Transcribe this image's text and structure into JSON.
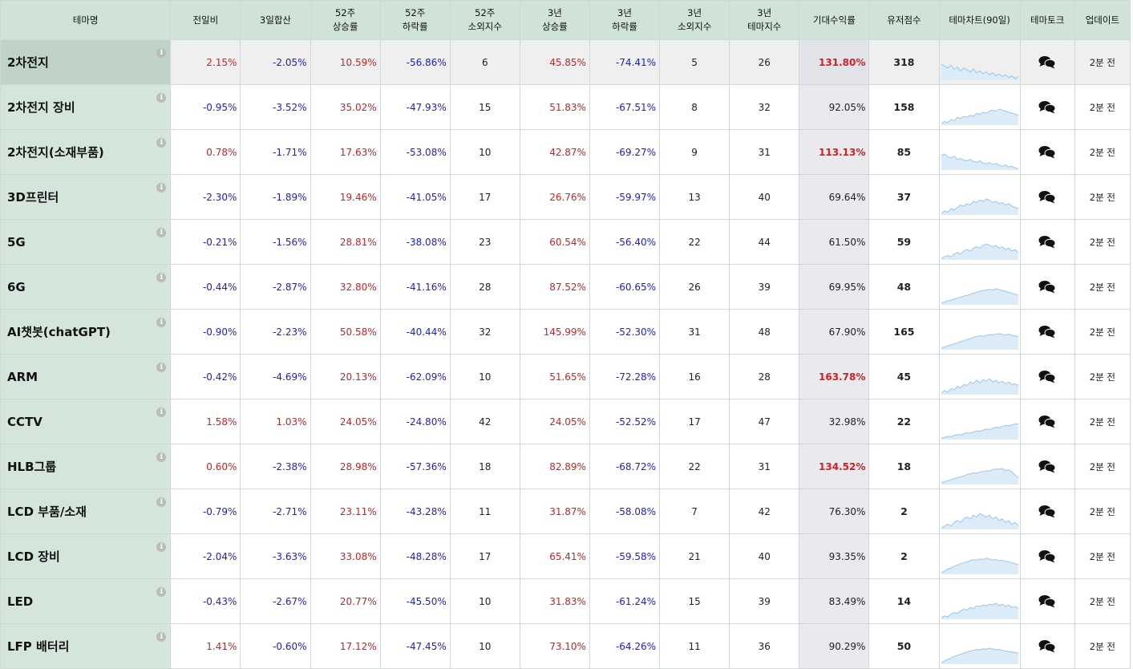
{
  "headers": {
    "name": [
      "테마명"
    ],
    "d1": [
      "전일비"
    ],
    "d3": [
      "3일합산"
    ],
    "w52up": [
      "52주",
      "상승률"
    ],
    "w52down": [
      "52주",
      "하락률"
    ],
    "w52alien": [
      "52주",
      "소외지수"
    ],
    "y3up": [
      "3년",
      "상승률"
    ],
    "y3down": [
      "3년",
      "하락률"
    ],
    "y3alien": [
      "3년",
      "소외지수"
    ],
    "y3theme": [
      "3년",
      "테마지수"
    ],
    "expected": [
      "기대수익률"
    ],
    "score": [
      "유저점수"
    ],
    "chart": [
      "테마차트(90일)"
    ],
    "talk": [
      "테마토크"
    ],
    "update": [
      "업데이트"
    ]
  },
  "colors": {
    "red": "#d12020",
    "blue": "#1c1cd6",
    "header_bg": "#cfe3d9",
    "name_bg": "#d4e6dc",
    "spark": "#9cc6ea"
  },
  "rows": [
    {
      "name": "2차전지",
      "d1": "2.15%",
      "d3": "-2.05%",
      "w52up": "10.59%",
      "w52down": "-56.86%",
      "w52alien": "6",
      "y3up": "45.85%",
      "y3down": "-74.41%",
      "y3alien": "5",
      "y3theme": "26",
      "expected": "131.80%",
      "hot": true,
      "score": "318",
      "update": "2분 전",
      "spark": [
        62,
        60,
        58,
        61,
        57,
        59,
        55,
        58,
        56,
        54,
        57,
        53,
        55,
        52,
        54,
        51,
        53,
        50,
        52,
        49,
        51,
        48,
        50,
        47,
        49
      ]
    },
    {
      "name": "2차전지 장비",
      "d1": "-0.95%",
      "d3": "-3.52%",
      "w52up": "35.02%",
      "w52down": "-47.93%",
      "w52alien": "15",
      "y3up": "51.83%",
      "y3down": "-67.51%",
      "y3alien": "8",
      "y3theme": "32",
      "expected": "92.05%",
      "hot": false,
      "score": "158",
      "update": "2분 전",
      "spark": [
        40,
        42,
        41,
        44,
        43,
        46,
        45,
        47,
        46,
        48,
        47,
        50,
        49,
        51,
        50,
        52,
        53,
        52,
        54,
        53,
        52,
        51,
        50,
        49,
        48
      ]
    },
    {
      "name": "2차전지(소재부품)",
      "d1": "0.78%",
      "d3": "-1.71%",
      "w52up": "17.63%",
      "w52down": "-53.08%",
      "w52alien": "10",
      "y3up": "42.87%",
      "y3down": "-69.27%",
      "y3alien": "9",
      "y3theme": "31",
      "expected": "113.13%",
      "hot": true,
      "score": "85",
      "update": "2분 전",
      "spark": [
        60,
        62,
        58,
        57,
        59,
        55,
        56,
        54,
        53,
        55,
        52,
        51,
        53,
        50,
        49,
        51,
        48,
        50,
        47,
        46,
        48,
        45,
        46,
        44,
        43
      ]
    },
    {
      "name": "3D프린터",
      "d1": "-2.30%",
      "d3": "-1.89%",
      "w52up": "19.46%",
      "w52down": "-41.05%",
      "w52alien": "17",
      "y3up": "26.76%",
      "y3down": "-59.97%",
      "y3alien": "13",
      "y3theme": "40",
      "expected": "69.64%",
      "hot": false,
      "score": "37",
      "update": "2분 전",
      "spark": [
        45,
        47,
        46,
        49,
        48,
        50,
        52,
        51,
        53,
        52,
        55,
        54,
        56,
        55,
        57,
        56,
        54,
        55,
        53,
        54,
        52,
        53,
        51,
        50,
        49
      ]
    },
    {
      "name": "5G",
      "d1": "-0.21%",
      "d3": "-1.56%",
      "w52up": "28.81%",
      "w52down": "-38.08%",
      "w52alien": "23",
      "y3up": "60.54%",
      "y3down": "-56.40%",
      "y3alien": "22",
      "y3theme": "44",
      "expected": "61.50%",
      "hot": false,
      "score": "59",
      "update": "2분 전",
      "spark": [
        50,
        51,
        52,
        51,
        53,
        54,
        53,
        55,
        56,
        55,
        57,
        58,
        57,
        59,
        60,
        59,
        58,
        59,
        57,
        58,
        56,
        57,
        55,
        56,
        54
      ]
    },
    {
      "name": "6G",
      "d1": "-0.44%",
      "d3": "-2.87%",
      "w52up": "32.80%",
      "w52down": "-41.16%",
      "w52alien": "28",
      "y3up": "87.52%",
      "y3down": "-60.65%",
      "y3alien": "26",
      "y3theme": "39",
      "expected": "69.95%",
      "hot": false,
      "score": "48",
      "update": "2분 전",
      "spark": [
        40,
        42,
        44,
        45,
        47,
        49,
        50,
        52,
        53,
        55,
        57,
        58,
        60,
        61,
        62,
        63,
        62,
        64,
        63,
        61,
        60,
        58,
        57,
        55,
        53
      ]
    },
    {
      "name": "AI챗봇(chatGPT)",
      "d1": "-0.90%",
      "d3": "-2.23%",
      "w52up": "50.58%",
      "w52down": "-40.44%",
      "w52alien": "32",
      "y3up": "145.99%",
      "y3down": "-52.30%",
      "y3alien": "31",
      "y3theme": "48",
      "expected": "67.90%",
      "hot": false,
      "score": "165",
      "update": "2분 전",
      "spark": [
        35,
        38,
        40,
        43,
        46,
        48,
        51,
        53,
        56,
        58,
        61,
        63,
        65,
        64,
        66,
        68,
        67,
        69,
        70,
        68,
        67,
        69,
        66,
        65,
        63
      ]
    },
    {
      "name": "ARM",
      "d1": "-0.42%",
      "d3": "-4.69%",
      "w52up": "20.13%",
      "w52down": "-62.09%",
      "w52alien": "10",
      "y3up": "51.65%",
      "y3down": "-72.28%",
      "y3alien": "16",
      "y3theme": "28",
      "expected": "163.78%",
      "hot": true,
      "score": "45",
      "update": "2분 전",
      "spark": [
        45,
        48,
        46,
        50,
        49,
        53,
        51,
        55,
        54,
        58,
        56,
        60,
        57,
        61,
        59,
        62,
        58,
        60,
        57,
        59,
        56,
        58,
        55,
        56,
        54
      ]
    },
    {
      "name": "CCTV",
      "d1": "1.58%",
      "d3": "1.03%",
      "w52up": "24.05%",
      "w52down": "-24.80%",
      "w52alien": "42",
      "y3up": "24.05%",
      "y3down": "-52.52%",
      "y3alien": "17",
      "y3theme": "47",
      "expected": "32.98%",
      "hot": false,
      "score": "22",
      "update": "2분 전",
      "spark": [
        40,
        41,
        43,
        42,
        44,
        46,
        45,
        47,
        49,
        48,
        50,
        52,
        51,
        53,
        55,
        54,
        56,
        58,
        57,
        59,
        61,
        60,
        62,
        63,
        64
      ]
    },
    {
      "name": "HLB그룹",
      "d1": "0.60%",
      "d3": "-2.38%",
      "w52up": "28.98%",
      "w52down": "-57.36%",
      "w52alien": "18",
      "y3up": "82.89%",
      "y3down": "-68.72%",
      "y3alien": "22",
      "y3theme": "31",
      "expected": "134.52%",
      "hot": true,
      "score": "18",
      "update": "2분 전",
      "spark": [
        40,
        43,
        45,
        47,
        50,
        52,
        54,
        56,
        59,
        61,
        63,
        62,
        65,
        66,
        68,
        67,
        70,
        72,
        71,
        73,
        68,
        70,
        65,
        58,
        52
      ]
    },
    {
      "name": "LCD 부품/소재",
      "d1": "-0.79%",
      "d3": "-2.71%",
      "w52up": "23.11%",
      "w52down": "-43.28%",
      "w52alien": "11",
      "y3up": "31.87%",
      "y3down": "-58.08%",
      "y3alien": "7",
      "y3theme": "42",
      "expected": "76.30%",
      "hot": false,
      "score": "2",
      "update": "2분 전",
      "spark": [
        45,
        46,
        47,
        46,
        48,
        49,
        48,
        50,
        51,
        50,
        52,
        51,
        53,
        52,
        51,
        52,
        50,
        51,
        49,
        50,
        48,
        49,
        47,
        48,
        46
      ]
    },
    {
      "name": "LCD 장비",
      "d1": "-2.04%",
      "d3": "-3.63%",
      "w52up": "33.08%",
      "w52down": "-48.28%",
      "w52alien": "17",
      "y3up": "65.41%",
      "y3down": "-59.58%",
      "y3alien": "21",
      "y3theme": "40",
      "expected": "93.35%",
      "hot": false,
      "score": "2",
      "update": "2분 전",
      "spark": [
        40,
        43,
        46,
        48,
        51,
        53,
        55,
        57,
        58,
        60,
        62,
        61,
        63,
        62,
        64,
        63,
        61,
        62,
        60,
        61,
        59,
        58,
        57,
        55,
        54
      ]
    },
    {
      "name": "LED",
      "d1": "-0.43%",
      "d3": "-2.67%",
      "w52up": "20.77%",
      "w52down": "-45.50%",
      "w52alien": "10",
      "y3up": "31.83%",
      "y3down": "-61.24%",
      "y3alien": "15",
      "y3theme": "39",
      "expected": "83.49%",
      "hot": false,
      "score": "14",
      "update": "2분 전",
      "spark": [
        42,
        44,
        43,
        46,
        48,
        47,
        50,
        52,
        51,
        54,
        53,
        56,
        55,
        57,
        56,
        58,
        57,
        59,
        56,
        58,
        55,
        57,
        54,
        55,
        53
      ]
    },
    {
      "name": "LFP 배터리",
      "d1": "1.41%",
      "d3": "-0.60%",
      "w52up": "17.12%",
      "w52down": "-47.45%",
      "w52alien": "10",
      "y3up": "73.10%",
      "y3down": "-64.26%",
      "y3alien": "11",
      "y3theme": "36",
      "expected": "90.29%",
      "hot": false,
      "score": "50",
      "update": "2분 전",
      "spark": [
        38,
        41,
        44,
        46,
        49,
        51,
        53,
        55,
        57,
        59,
        60,
        62,
        61,
        63,
        62,
        64,
        63,
        61,
        62,
        60,
        59,
        58,
        57,
        56,
        55
      ]
    }
  ]
}
